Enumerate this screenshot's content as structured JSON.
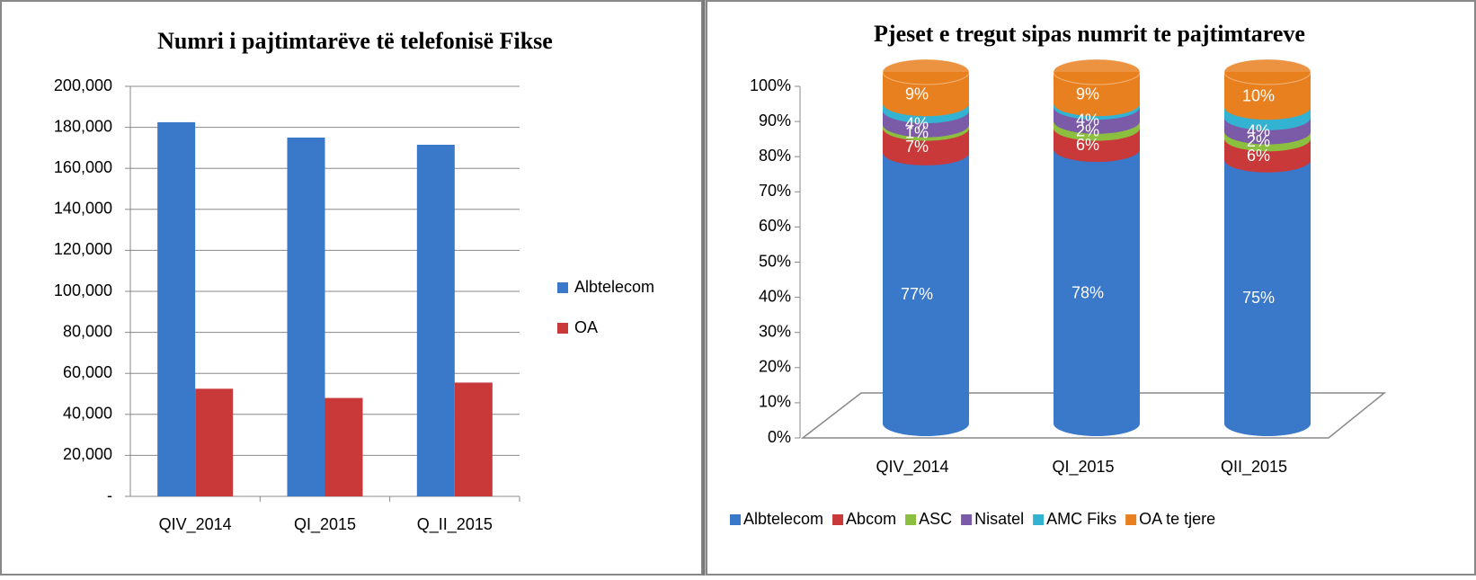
{
  "chart_data": [
    {
      "type": "bar",
      "title": "Numri i pajtimtarëve të telefonisë Fikse",
      "categories": [
        "QIV_2014",
        "QI_2015",
        "Q_II_2015"
      ],
      "series": [
        {
          "name": "Albtelecom",
          "color": "#3a78c9",
          "values": [
            182500,
            175000,
            171500
          ]
        },
        {
          "name": "OA",
          "color": "#c9393a",
          "values": [
            52500,
            48000,
            55500
          ]
        }
      ],
      "ylim": [
        0,
        200000
      ],
      "yticks": [
        {
          "value": 0,
          "label": "-"
        },
        {
          "value": 20000,
          "label": "20,000"
        },
        {
          "value": 40000,
          "label": "40,000"
        },
        {
          "value": 60000,
          "label": "60,000"
        },
        {
          "value": 80000,
          "label": "80,000"
        },
        {
          "value": 100000,
          "label": "100,000"
        },
        {
          "value": 120000,
          "label": "120,000"
        },
        {
          "value": 140000,
          "label": "140,000"
        },
        {
          "value": 160000,
          "label": "160,000"
        },
        {
          "value": 180000,
          "label": "180,000"
        },
        {
          "value": 200000,
          "label": "200,000"
        }
      ],
      "grid": true,
      "legend": "right"
    },
    {
      "type": "stacked_cylinder",
      "title": "Pjeset e tregut sipas numrit te pajtimtareve",
      "categories": [
        "QIV_2014",
        "QI_2015",
        "QII_2015"
      ],
      "series": [
        {
          "name": "Albtelecom",
          "color": "#3a78c9",
          "values": [
            77,
            78,
            75
          ],
          "value_labels": [
            "77%",
            "78%",
            "75%"
          ]
        },
        {
          "name": "Abcom",
          "color": "#c9393a",
          "values": [
            7,
            6,
            6
          ],
          "value_labels": [
            "7%",
            "6%",
            "6%"
          ]
        },
        {
          "name": "ASC",
          "color": "#8cbf3f",
          "values": [
            1,
            2,
            2
          ],
          "value_labels": [
            "1%",
            "2%",
            "2%"
          ]
        },
        {
          "name": "Nisatel",
          "color": "#7b5aa7",
          "values": [
            4,
            4,
            4
          ],
          "value_labels": [
            "4%",
            "4%",
            "4%"
          ]
        },
        {
          "name": "AMC Fiks",
          "color": "#33b2d2",
          "values": [
            2,
            1,
            3
          ]
        },
        {
          "name": "OA te tjere",
          "color": "#e8801f",
          "values": [
            9,
            9,
            10
          ],
          "value_labels": [
            "9%",
            "9%",
            "10%"
          ]
        }
      ],
      "ylim": [
        0,
        100
      ],
      "yticks": [
        {
          "value": 0,
          "label": "0%"
        },
        {
          "value": 10,
          "label": "10%"
        },
        {
          "value": 20,
          "label": "20%"
        },
        {
          "value": 30,
          "label": "30%"
        },
        {
          "value": 40,
          "label": "40%"
        },
        {
          "value": 50,
          "label": "50%"
        },
        {
          "value": 60,
          "label": "60%"
        },
        {
          "value": 70,
          "label": "70%"
        },
        {
          "value": 80,
          "label": "80%"
        },
        {
          "value": 90,
          "label": "90%"
        },
        {
          "value": 100,
          "label": "100%"
        }
      ],
      "legend": "bottom"
    }
  ]
}
